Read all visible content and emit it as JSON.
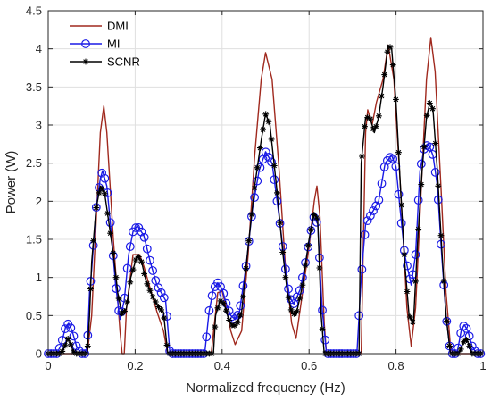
{
  "chart_data": {
    "type": "line",
    "xlabel": "Normalized frequency (Hz)",
    "ylabel": "Power (W)",
    "xlim": [
      0,
      1
    ],
    "ylim": [
      0,
      4.5
    ],
    "xticks": [
      0,
      0.2,
      0.4,
      0.6,
      0.8,
      1
    ],
    "xtick_labels": [
      "0",
      "0.2",
      "0.4",
      "0.6",
      "0.8",
      "1"
    ],
    "yticks": [
      0,
      0.5,
      1,
      1.5,
      2,
      2.5,
      3,
      3.5,
      4,
      4.5
    ],
    "ytick_labels": [
      "0",
      "0.5",
      "1",
      "1.5",
      "2",
      "2.5",
      "3",
      "3.5",
      "4",
      "4.5"
    ],
    "grid": true,
    "legend": {
      "position": "top-left"
    },
    "series": [
      {
        "name": "DMI",
        "color": "#a0291e",
        "marker": "none",
        "points": [
          [
            0,
            0
          ],
          [
            0.09,
            0
          ],
          [
            0.1,
            0.5
          ],
          [
            0.11,
            1.7
          ],
          [
            0.12,
            2.9
          ],
          [
            0.128,
            3.25
          ],
          [
            0.135,
            2.9
          ],
          [
            0.15,
            1.5
          ],
          [
            0.165,
            0.3
          ],
          [
            0.17,
            0
          ],
          [
            0.175,
            0
          ],
          [
            0.18,
            0.6
          ],
          [
            0.195,
            1.3
          ],
          [
            0.21,
            1.3
          ],
          [
            0.22,
            1.15
          ],
          [
            0.235,
            0.85
          ],
          [
            0.25,
            0.55
          ],
          [
            0.265,
            0.3
          ],
          [
            0.275,
            0
          ],
          [
            0.375,
            0
          ],
          [
            0.39,
            0.8
          ],
          [
            0.4,
            0.82
          ],
          [
            0.41,
            0.6
          ],
          [
            0.42,
            0.3
          ],
          [
            0.43,
            0.12
          ],
          [
            0.445,
            0.3
          ],
          [
            0.46,
            1.3
          ],
          [
            0.475,
            2.6
          ],
          [
            0.49,
            3.6
          ],
          [
            0.5,
            3.95
          ],
          [
            0.515,
            3.6
          ],
          [
            0.53,
            2.5
          ],
          [
            0.545,
            1.2
          ],
          [
            0.56,
            0.4
          ],
          [
            0.57,
            0.2
          ],
          [
            0.585,
            0.8
          ],
          [
            0.6,
            1.4
          ],
          [
            0.612,
            2.0
          ],
          [
            0.618,
            2.2
          ],
          [
            0.625,
            1.8
          ],
          [
            0.635,
            0.4
          ],
          [
            0.64,
            0
          ],
          [
            0.72,
            0
          ],
          [
            0.725,
            1.5
          ],
          [
            0.73,
            2.9
          ],
          [
            0.735,
            3.2
          ],
          [
            0.745,
            3.0
          ],
          [
            0.755,
            3.3
          ],
          [
            0.77,
            3.6
          ],
          [
            0.782,
            4.05
          ],
          [
            0.795,
            3.6
          ],
          [
            0.81,
            2.2
          ],
          [
            0.825,
            0.6
          ],
          [
            0.835,
            0.1
          ],
          [
            0.845,
            0.6
          ],
          [
            0.86,
            2.4
          ],
          [
            0.87,
            3.6
          ],
          [
            0.88,
            4.15
          ],
          [
            0.89,
            3.7
          ],
          [
            0.905,
            2.0
          ],
          [
            0.915,
            0.8
          ],
          [
            0.925,
            0.1
          ],
          [
            0.93,
            0
          ],
          [
            1,
            0
          ]
        ]
      },
      {
        "name": "MI",
        "color": "#1a1ae6",
        "marker": "circle",
        "points": [
          [
            0,
            0
          ],
          [
            0.02,
            0
          ],
          [
            0.03,
            0.12
          ],
          [
            0.04,
            0.35
          ],
          [
            0.047,
            0.4
          ],
          [
            0.055,
            0.3
          ],
          [
            0.065,
            0.1
          ],
          [
            0.075,
            0
          ],
          [
            0.085,
            0
          ],
          [
            0.09,
            0.1
          ],
          [
            0.095,
            0.8
          ],
          [
            0.1,
            1.1
          ],
          [
            0.11,
            1.9
          ],
          [
            0.12,
            2.3
          ],
          [
            0.125,
            2.4
          ],
          [
            0.135,
            2.2
          ],
          [
            0.145,
            1.6
          ],
          [
            0.155,
            0.9
          ],
          [
            0.165,
            0.45
          ],
          [
            0.175,
            0.7
          ],
          [
            0.185,
            1.3
          ],
          [
            0.195,
            1.6
          ],
          [
            0.205,
            1.68
          ],
          [
            0.22,
            1.55
          ],
          [
            0.235,
            1.2
          ],
          [
            0.25,
            0.9
          ],
          [
            0.26,
            0.8
          ],
          [
            0.27,
            0.7
          ],
          [
            0.28,
            0
          ],
          [
            0.36,
            0
          ],
          [
            0.37,
            0.55
          ],
          [
            0.38,
            0.85
          ],
          [
            0.39,
            0.93
          ],
          [
            0.4,
            0.85
          ],
          [
            0.41,
            0.65
          ],
          [
            0.42,
            0.5
          ],
          [
            0.43,
            0.45
          ],
          [
            0.44,
            0.55
          ],
          [
            0.455,
            1.15
          ],
          [
            0.47,
            1.9
          ],
          [
            0.485,
            2.4
          ],
          [
            0.5,
            2.65
          ],
          [
            0.515,
            2.5
          ],
          [
            0.53,
            1.85
          ],
          [
            0.545,
            1.15
          ],
          [
            0.555,
            0.75
          ],
          [
            0.565,
            0.65
          ],
          [
            0.58,
            0.85
          ],
          [
            0.595,
            1.3
          ],
          [
            0.61,
            1.8
          ],
          [
            0.62,
            1.7
          ],
          [
            0.63,
            0.6
          ],
          [
            0.64,
            0
          ],
          [
            0.71,
            0
          ],
          [
            0.72,
            1.0
          ],
          [
            0.73,
            1.7
          ],
          [
            0.745,
            1.85
          ],
          [
            0.76,
            2.0
          ],
          [
            0.775,
            2.5
          ],
          [
            0.79,
            2.6
          ],
          [
            0.8,
            2.45
          ],
          [
            0.81,
            1.85
          ],
          [
            0.82,
            1.3
          ],
          [
            0.835,
            0.9
          ],
          [
            0.845,
            1.3
          ],
          [
            0.855,
            2.4
          ],
          [
            0.865,
            2.7
          ],
          [
            0.875,
            2.75
          ],
          [
            0.885,
            2.6
          ],
          [
            0.895,
            2.2
          ],
          [
            0.905,
            1.3
          ],
          [
            0.915,
            0.5
          ],
          [
            0.925,
            0
          ],
          [
            0.94,
            0
          ],
          [
            0.95,
            0.3
          ],
          [
            0.957,
            0.38
          ],
          [
            0.965,
            0.3
          ],
          [
            0.975,
            0.1
          ],
          [
            0.985,
            0
          ],
          [
            1,
            0
          ]
        ]
      },
      {
        "name": "SCNR",
        "color": "#000000",
        "marker": "star",
        "points": [
          [
            0,
            0
          ],
          [
            0.03,
            0
          ],
          [
            0.04,
            0.12
          ],
          [
            0.045,
            0.2
          ],
          [
            0.05,
            0.15
          ],
          [
            0.06,
            0
          ],
          [
            0.09,
            0
          ],
          [
            0.095,
            0.5
          ],
          [
            0.1,
            1.2
          ],
          [
            0.11,
            1.9
          ],
          [
            0.12,
            2.2
          ],
          [
            0.13,
            2.1
          ],
          [
            0.14,
            1.7
          ],
          [
            0.15,
            1.3
          ],
          [
            0.16,
            0.8
          ],
          [
            0.17,
            0.5
          ],
          [
            0.18,
            0.6
          ],
          [
            0.19,
            1.0
          ],
          [
            0.205,
            1.3
          ],
          [
            0.215,
            1.2
          ],
          [
            0.225,
            0.95
          ],
          [
            0.24,
            0.75
          ],
          [
            0.255,
            0.6
          ],
          [
            0.265,
            0.55
          ],
          [
            0.275,
            0
          ],
          [
            0.38,
            0
          ],
          [
            0.385,
            0.5
          ],
          [
            0.395,
            0.7
          ],
          [
            0.405,
            0.65
          ],
          [
            0.415,
            0.45
          ],
          [
            0.425,
            0.35
          ],
          [
            0.435,
            0.4
          ],
          [
            0.445,
            0.55
          ],
          [
            0.46,
            1.4
          ],
          [
            0.475,
            2.2
          ],
          [
            0.49,
            2.8
          ],
          [
            0.5,
            3.15
          ],
          [
            0.51,
            3.0
          ],
          [
            0.525,
            2.2
          ],
          [
            0.54,
            1.3
          ],
          [
            0.55,
            0.8
          ],
          [
            0.56,
            0.55
          ],
          [
            0.57,
            0.5
          ],
          [
            0.585,
            0.9
          ],
          [
            0.6,
            1.5
          ],
          [
            0.612,
            1.85
          ],
          [
            0.62,
            1.75
          ],
          [
            0.628,
            0.5
          ],
          [
            0.635,
            0
          ],
          [
            0.715,
            0
          ],
          [
            0.72,
            2.5
          ],
          [
            0.73,
            3.1
          ],
          [
            0.74,
            3.1
          ],
          [
            0.75,
            2.9
          ],
          [
            0.76,
            3.1
          ],
          [
            0.77,
            3.5
          ],
          [
            0.782,
            4.05
          ],
          [
            0.79,
            4.0
          ],
          [
            0.8,
            3.3
          ],
          [
            0.81,
            2.2
          ],
          [
            0.82,
            1.2
          ],
          [
            0.83,
            0.5
          ],
          [
            0.84,
            0.4
          ],
          [
            0.85,
            1.5
          ],
          [
            0.86,
            2.4
          ],
          [
            0.87,
            3.1
          ],
          [
            0.878,
            3.3
          ],
          [
            0.885,
            3.2
          ],
          [
            0.895,
            2.4
          ],
          [
            0.905,
            1.4
          ],
          [
            0.915,
            0.5
          ],
          [
            0.925,
            0
          ],
          [
            0.945,
            0
          ],
          [
            0.955,
            0.15
          ],
          [
            0.96,
            0.2
          ],
          [
            0.965,
            0.15
          ],
          [
            0.975,
            0
          ],
          [
            1,
            0
          ]
        ]
      }
    ]
  }
}
